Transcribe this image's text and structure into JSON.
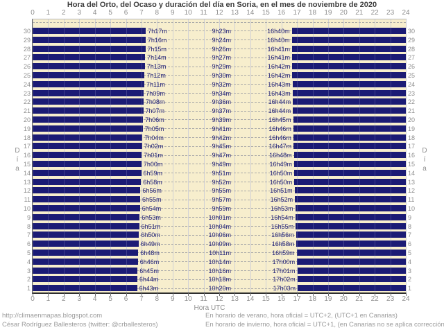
{
  "colors": {
    "night_bar": "#1b1b75",
    "day_background": "#f7eecd",
    "time_label": "#1b1b75",
    "axis_text": "#8f8f8f",
    "title_text": "#3c3c3c",
    "footer_text": "#9b9b9b"
  },
  "footer": {
    "left_line1": "http://climaenmapas.blogspot.com",
    "left_line2": "César Rodríguez Ballesteros (twitter: @crballesteros)",
    "right_line1": "En horario de verano, hora oficial = UTC+2, (UTC+1 en Canarias)",
    "right_line2": "En horario de invierno, hora oficial = UTC+1, (en Canarias no se aplica corrección)"
  },
  "chart_data": {
    "type": "bar",
    "orientation": "horizontal-day-night",
    "title": "Hora del Orto, del Ocaso y duración del día en Soria, en el mes de noviembre de 2020",
    "xlabel": "Hora UTC",
    "ylabel_left": "Día",
    "ylabel_right": "Día",
    "xlim": [
      0,
      24
    ],
    "x_ticks": [
      0,
      1,
      2,
      3,
      4,
      5,
      6,
      7,
      8,
      9,
      10,
      11,
      12,
      13,
      14,
      15,
      16,
      17,
      18,
      19,
      20,
      21,
      22,
      23,
      24
    ],
    "grid": true,
    "rows_top_to_bottom": true,
    "days": [
      {
        "day": 30,
        "orto": "7h17m",
        "duracion": "9h23m",
        "ocaso": "16h40m"
      },
      {
        "day": 29,
        "orto": "7h16m",
        "duracion": "9h24m",
        "ocaso": "16h40m"
      },
      {
        "day": 28,
        "orto": "7h15m",
        "duracion": "9h26m",
        "ocaso": "16h41m"
      },
      {
        "day": 27,
        "orto": "7h14m",
        "duracion": "9h27m",
        "ocaso": "16h41m"
      },
      {
        "day": 26,
        "orto": "7h13m",
        "duracion": "9h29m",
        "ocaso": "16h42m"
      },
      {
        "day": 25,
        "orto": "7h12m",
        "duracion": "9h30m",
        "ocaso": "16h42m"
      },
      {
        "day": 24,
        "orto": "7h11m",
        "duracion": "9h32m",
        "ocaso": "16h43m"
      },
      {
        "day": 23,
        "orto": "7h09m",
        "duracion": "9h34m",
        "ocaso": "16h43m"
      },
      {
        "day": 22,
        "orto": "7h08m",
        "duracion": "9h36m",
        "ocaso": "16h44m"
      },
      {
        "day": 21,
        "orto": "7h07m",
        "duracion": "9h37m",
        "ocaso": "16h44m"
      },
      {
        "day": 20,
        "orto": "7h06m",
        "duracion": "9h39m",
        "ocaso": "16h45m"
      },
      {
        "day": 19,
        "orto": "7h05m",
        "duracion": "9h41m",
        "ocaso": "16h46m"
      },
      {
        "day": 18,
        "orto": "7h04m",
        "duracion": "9h42m",
        "ocaso": "16h46m"
      },
      {
        "day": 17,
        "orto": "7h02m",
        "duracion": "9h45m",
        "ocaso": "16h47m"
      },
      {
        "day": 16,
        "orto": "7h01m",
        "duracion": "9h47m",
        "ocaso": "16h48m"
      },
      {
        "day": 15,
        "orto": "7h00m",
        "duracion": "9h49m",
        "ocaso": "16h49m"
      },
      {
        "day": 14,
        "orto": "6h59m",
        "duracion": "9h51m",
        "ocaso": "16h50m"
      },
      {
        "day": 13,
        "orto": "6h58m",
        "duracion": "9h52m",
        "ocaso": "16h50m"
      },
      {
        "day": 12,
        "orto": "6h56m",
        "duracion": "9h55m",
        "ocaso": "16h51m"
      },
      {
        "day": 11,
        "orto": "6h55m",
        "duracion": "9h57m",
        "ocaso": "16h52m"
      },
      {
        "day": 10,
        "orto": "6h54m",
        "duracion": "9h59m",
        "ocaso": "16h53m"
      },
      {
        "day": 9,
        "orto": "6h53m",
        "duracion": "10h01m",
        "ocaso": "16h54m"
      },
      {
        "day": 8,
        "orto": "6h51m",
        "duracion": "10h04m",
        "ocaso": "16h55m"
      },
      {
        "day": 7,
        "orto": "6h50m",
        "duracion": "10h06m",
        "ocaso": "16h56m"
      },
      {
        "day": 6,
        "orto": "6h49m",
        "duracion": "10h09m",
        "ocaso": "16h58m"
      },
      {
        "day": 5,
        "orto": "6h48m",
        "duracion": "10h11m",
        "ocaso": "16h59m"
      },
      {
        "day": 4,
        "orto": "6h46m",
        "duracion": "10h14m",
        "ocaso": "17h00m"
      },
      {
        "day": 3,
        "orto": "6h45m",
        "duracion": "10h16m",
        "ocaso": "17h01m"
      },
      {
        "day": 2,
        "orto": "6h44m",
        "duracion": "10h18m",
        "ocaso": "17h02m"
      },
      {
        "day": 1,
        "orto": "6h43m",
        "duracion": "10h20m",
        "ocaso": "17h03m"
      }
    ]
  }
}
